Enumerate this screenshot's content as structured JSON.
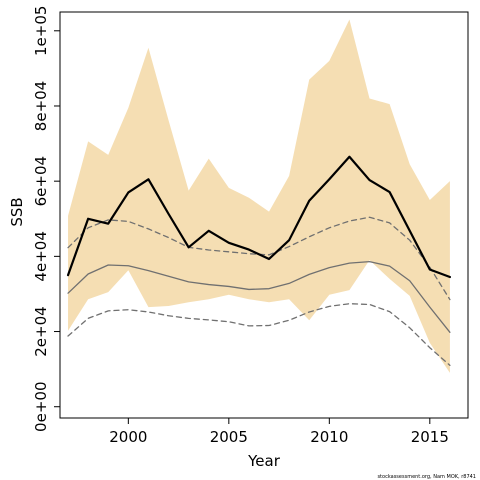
{
  "chart_data": {
    "type": "line",
    "xlabel": "Year",
    "ylabel": "SSB",
    "xlim": [
      1996.6,
      2016.9
    ],
    "ylim": [
      -3000,
      105000
    ],
    "x_ticks": [
      2000,
      2005,
      2010,
      2015
    ],
    "x_tick_labels": [
      "2000",
      "2005",
      "2010",
      "2015"
    ],
    "y_ticks": [
      0,
      20000,
      40000,
      60000,
      80000,
      100000
    ],
    "y_tick_labels": [
      "0e+00",
      "2e+04",
      "4e+04",
      "6e+04",
      "8e+04",
      "1e+05"
    ],
    "x": [
      1997,
      1998,
      1999,
      2000,
      2001,
      2002,
      2003,
      2004,
      2005,
      2006,
      2007,
      2008,
      2009,
      2010,
      2011,
      2012,
      2013,
      2014,
      2015,
      2016
    ],
    "band": {
      "color": "#f5deb3",
      "upper": [
        50800,
        70600,
        67000,
        79500,
        95500,
        76200,
        57500,
        66000,
        58200,
        55600,
        51900,
        61400,
        87000,
        92000,
        103000,
        82000,
        80500,
        64500,
        55000,
        60000
      ],
      "lower": [
        20200,
        28600,
        30500,
        36300,
        26500,
        26800,
        27800,
        28600,
        29800,
        28600,
        27800,
        28600,
        23000,
        29800,
        31000,
        39000,
        34000,
        29500,
        17000,
        9000
      ]
    },
    "series": [
      {
        "values": [
          35000,
          50000,
          48700,
          57000,
          60500,
          51300,
          42400,
          46800,
          43600,
          41800,
          39300,
          44300,
          54800,
          60500,
          66500,
          60300,
          57100,
          46800,
          36500,
          34500
        ],
        "color": "#000000",
        "style": "solid-bold"
      },
      {
        "values": [
          30200,
          35300,
          37700,
          37500,
          36200,
          34700,
          33200,
          32500,
          32000,
          31200,
          31400,
          32800,
          35200,
          37000,
          38200,
          38600,
          37400,
          33500,
          26500,
          19800
        ],
        "color": "#707070",
        "style": "solid"
      },
      {
        "values": [
          42300,
          47600,
          49700,
          49300,
          47300,
          45000,
          42400,
          41700,
          41200,
          40700,
          40400,
          42600,
          45200,
          47600,
          49400,
          50400,
          48900,
          44300,
          37100,
          28500
        ],
        "color": "#707070",
        "style": "dashed"
      },
      {
        "values": [
          18800,
          23500,
          25500,
          25800,
          25200,
          24200,
          23500,
          23100,
          22600,
          21500,
          21600,
          23000,
          25200,
          26700,
          27400,
          27200,
          25300,
          21000,
          15700,
          11000
        ],
        "color": "#707070",
        "style": "dashed"
      }
    ],
    "footnote": "stockassessment.org, Nam MOK, r8741"
  }
}
